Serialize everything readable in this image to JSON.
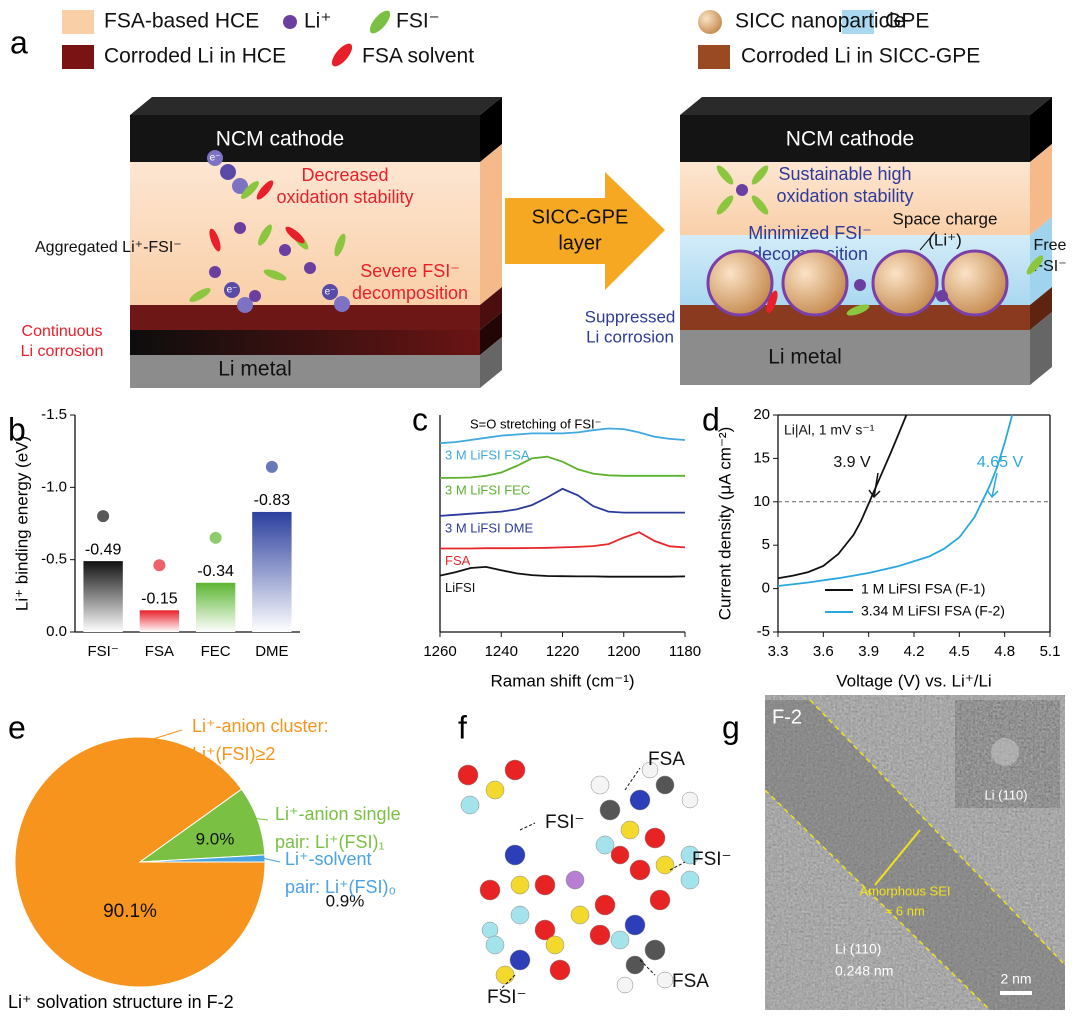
{
  "panel_labels": [
    "a",
    "b",
    "c",
    "d",
    "e",
    "f",
    "g"
  ],
  "panel_a": {
    "legend": [
      "FSA-based HCE",
      "Li⁺",
      "FSI⁻",
      "Corroded Li in HCE",
      "FSA solvent",
      "SICC nanoparticle",
      "GPE",
      "Corroded Li in SICC-GPE"
    ],
    "electron": "e⁻",
    "left": {
      "cathode": "NCM cathode",
      "anode": "Li metal",
      "oxidation": [
        "Decreased",
        "oxidation stability"
      ],
      "aggregated": "Aggregated Li⁺-FSI⁻",
      "decomposition": [
        "Severe FSI⁻",
        "decomposition"
      ],
      "corrosion": [
        "Continuous",
        "Li corrosion"
      ]
    },
    "arrow": [
      "SICC-GPE",
      "layer"
    ],
    "right": {
      "cathode": "NCM cathode",
      "anode": "Li metal",
      "oxidation": [
        "Sustainable high",
        "oxidation stability"
      ],
      "decomposition": [
        "Minimized FSI⁻",
        "decomposition"
      ],
      "space_charge": [
        "Space charge",
        "(Li⁺)"
      ],
      "free": [
        "Free",
        "FSI⁻"
      ],
      "corrosion": [
        "Suppressed",
        "Li corrosion"
      ]
    }
  },
  "chart_data": [
    {
      "type": "bar",
      "ylabel": "Li⁺ binding energy (eV)",
      "categories": [
        "FSI⁻",
        "FSA",
        "FEC",
        "DME"
      ],
      "values": [
        -0.49,
        -0.15,
        -0.34,
        -0.83
      ],
      "colors": [
        "#111111",
        "#e8202a",
        "#5cb531",
        "#2b3f9e"
      ],
      "ylim": [
        0,
        -1.5
      ],
      "yticks": [
        {
          "value": 0,
          "label": "0.0"
        },
        {
          "value": -0.5,
          "label": "-0.5"
        },
        {
          "value": -1,
          "label": "-1.0"
        },
        {
          "value": -1.5,
          "label": "-1.5"
        }
      ]
    },
    {
      "type": "line",
      "xlabel": "Raman shift (cm⁻¹)",
      "annotation": "S=O stretching of FSI⁻",
      "x": [
        1260,
        1255,
        1250,
        1245,
        1240,
        1235,
        1230,
        1225,
        1220,
        1215,
        1210,
        1205,
        1200,
        1195,
        1190,
        1185,
        1180
      ],
      "xlim": [
        1260,
        1180
      ],
      "xticks": [
        1260,
        1240,
        1220,
        1200,
        1180
      ],
      "ylim": [
        0,
        10
      ],
      "series": [
        {
          "name": "LiFSI",
          "color": "#111111",
          "values": [
            2.6,
            2.75,
            2.95,
            3.0,
            2.85,
            2.7,
            2.62,
            2.58,
            2.57,
            2.56,
            2.56,
            2.55,
            2.55,
            2.55,
            2.55,
            2.55,
            2.56
          ]
        },
        {
          "name": "FSA",
          "color": "#e8272a",
          "values": [
            3.85,
            3.85,
            3.85,
            3.86,
            3.86,
            3.86,
            3.87,
            3.88,
            3.9,
            3.92,
            3.96,
            4.05,
            4.35,
            4.6,
            4.2,
            3.95,
            3.9
          ]
        },
        {
          "name": "3 M LiFSI DME",
          "color": "#2b3a9a",
          "values": [
            5.35,
            5.4,
            5.45,
            5.5,
            5.55,
            5.65,
            5.85,
            6.2,
            6.6,
            6.3,
            5.8,
            5.55,
            5.5,
            5.5,
            5.5,
            5.5,
            5.5
          ]
        },
        {
          "name": "3 M LiFSI FEC",
          "color": "#5cb130",
          "values": [
            7.1,
            7.1,
            7.12,
            7.2,
            7.35,
            7.65,
            8.0,
            8.08,
            7.85,
            7.5,
            7.3,
            7.22,
            7.2,
            7.2,
            7.2,
            7.2,
            7.2
          ]
        },
        {
          "name": "3 M LiFSI FSA",
          "color": "#3fa9e0",
          "values": [
            8.7,
            8.75,
            8.85,
            8.95,
            9.05,
            9.1,
            9.15,
            9.15,
            9.15,
            9.2,
            9.3,
            9.38,
            9.35,
            9.2,
            9.0,
            8.9,
            8.85
          ]
        }
      ]
    },
    {
      "type": "line",
      "xlabel": "Voltage (V) vs. Li⁺/Li",
      "ylabel": "Current density (μA cm⁻²)",
      "annotations": [
        "Li|Al, 1 mV s⁻¹",
        "3.9 V",
        "4.65 V"
      ],
      "hline": 10,
      "xlim": [
        3.3,
        5.1
      ],
      "xticks": [
        3.3,
        3.6,
        3.9,
        4.2,
        4.5,
        4.8,
        5.1
      ],
      "ylim": [
        -5,
        20
      ],
      "yticks": [
        -5,
        0,
        5,
        10,
        15,
        20
      ],
      "legend": "lower right",
      "series": [
        {
          "name": "1 M LiFSI FSA (F-1)",
          "color": "#111111",
          "x": [
            3.3,
            3.4,
            3.5,
            3.6,
            3.7,
            3.8,
            3.85,
            3.9,
            3.95,
            4.0,
            4.05,
            4.1,
            4.15
          ],
          "values": [
            1.2,
            1.5,
            1.9,
            2.6,
            4.0,
            6.2,
            7.8,
            9.8,
            11.8,
            13.8,
            15.8,
            17.9,
            20
          ]
        },
        {
          "name": "3.34 M LiFSI FSA (F-2)",
          "color": "#29a8e0",
          "x": [
            3.3,
            3.5,
            3.7,
            3.9,
            4.1,
            4.3,
            4.4,
            4.5,
            4.6,
            4.65,
            4.7,
            4.75,
            4.8,
            4.85
          ],
          "values": [
            0.3,
            0.7,
            1.2,
            1.8,
            2.6,
            3.7,
            4.6,
            5.9,
            8.2,
            10,
            11.8,
            14,
            16.8,
            20
          ]
        }
      ]
    },
    {
      "type": "pie",
      "title": "Li⁺ solvation structure in F-2",
      "categories": [
        [
          "Li⁺-anion cluster:",
          "Li⁺(FSI)≥2"
        ],
        [
          "Li⁺-anion single",
          "pair: Li⁺(FSI)₁"
        ],
        [
          "Li⁺-solvent",
          "pair: Li⁺(FSI)₀"
        ]
      ],
      "values": [
        90.1,
        9.0,
        0.9
      ],
      "value_labels": [
        "90.1%",
        "9.0%",
        "0.9%"
      ],
      "colors": [
        "#f7941d",
        "#7ac143",
        "#4ba3e0"
      ]
    }
  ],
  "panel_f": {
    "labels": [
      "FSI⁻",
      "FSA",
      "FSI⁻",
      "FSA",
      "FSI⁻"
    ]
  },
  "panel_g": {
    "sample": "F-2",
    "inset": "Li (110)",
    "sei": "Amorphous SEI",
    "thickness": "≈ 6 nm",
    "lattice": [
      "Li (110)",
      "0.248 nm"
    ],
    "scale": "2 nm"
  }
}
